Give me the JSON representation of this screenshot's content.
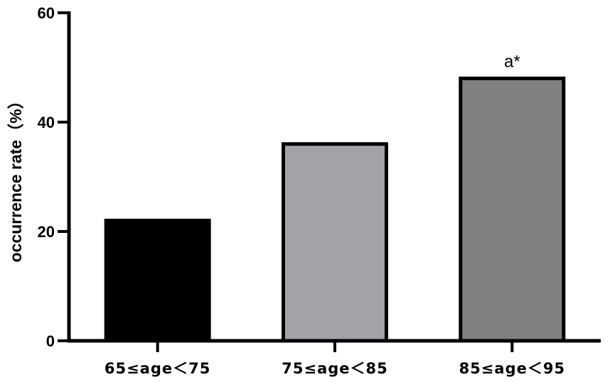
{
  "chart_data": {
    "type": "bar",
    "title": "",
    "xlabel": "",
    "ylabel": "occurrence rate（%）",
    "categories": [
      "65≤age＜75",
      "75≤age＜85",
      "85≤age＜95"
    ],
    "values": [
      22,
      36,
      48
    ],
    "ylim": [
      0,
      60
    ],
    "yticks": [
      0,
      20,
      40,
      60
    ],
    "bar_colors": [
      "#000000",
      "#a3a3a7",
      "#808080"
    ],
    "bar_edge_color": "#000000",
    "annotations": [
      {
        "category_index": 2,
        "text": "a*"
      }
    ],
    "grid": false,
    "legend": "none"
  }
}
